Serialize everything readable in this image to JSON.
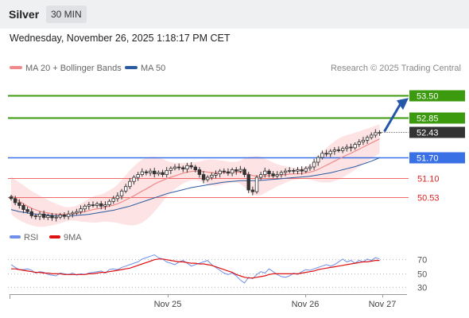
{
  "header": {
    "instrument": "Silver",
    "timeframe": "30 MIN"
  },
  "datetime": "Wednesday, November 26, 2025 1:18:17 PM CET",
  "legend": [
    {
      "label": "MA 20 + Bollinger Bands",
      "color": "#f08a8a"
    },
    {
      "label": "MA 50",
      "color": "#2c5aa0"
    }
  ],
  "credit": "Research © 2025 Trading Central",
  "rsi_legend": [
    {
      "label": "RSI",
      "color": "#6f8fe8"
    },
    {
      "label": "9MA",
      "color": "#dd1111"
    }
  ],
  "colors": {
    "resistance": "#3c9a0e",
    "pivot": "#3a70e6",
    "support": "#f06a6a",
    "last": "#333333",
    "arrow": "#2457a8",
    "up_candle": "#ffffff",
    "down_candle": "#333333",
    "band_fill": "#fde3e3"
  },
  "chart_data": {
    "type": "candlestick",
    "ylim": [
      49.8,
      53.9
    ],
    "x_ticks": [
      "Nov 25",
      "Nov 26",
      "Nov 27"
    ],
    "levels": [
      {
        "value": 53.5,
        "label": "53.50",
        "kind": "resistance"
      },
      {
        "value": 52.85,
        "label": "52.85",
        "kind": "resistance"
      },
      {
        "value": 52.43,
        "label": "52.43",
        "kind": "last"
      },
      {
        "value": 51.7,
        "label": "51.70",
        "kind": "pivot"
      },
      {
        "value": 51.1,
        "label": "51.10",
        "kind": "support"
      },
      {
        "value": 50.53,
        "label": "50.53",
        "kind": "support"
      }
    ],
    "closes": [
      50.5,
      50.38,
      50.3,
      50.18,
      50.12,
      50.0,
      49.98,
      50.05,
      49.95,
      50.0,
      49.94,
      49.96,
      50.02,
      49.98,
      50.05,
      50.08,
      50.12,
      50.2,
      50.28,
      50.32,
      50.3,
      50.35,
      50.28,
      50.32,
      50.42,
      50.5,
      50.58,
      50.72,
      50.85,
      51.0,
      51.12,
      51.2,
      51.28,
      51.25,
      51.3,
      51.22,
      51.26,
      51.2,
      51.32,
      51.38,
      51.42,
      51.4,
      51.36,
      51.46,
      51.42,
      51.34,
      51.2,
      51.05,
      51.12,
      51.18,
      51.22,
      51.3,
      51.28,
      51.24,
      51.34,
      51.3,
      51.35,
      51.2,
      50.75,
      50.7,
      51.12,
      51.2,
      51.3,
      51.22,
      51.16,
      51.2,
      51.26,
      51.3,
      51.32,
      51.3,
      51.34,
      51.3,
      51.38,
      51.42,
      51.56,
      51.7,
      51.82,
      51.8,
      51.88,
      51.92,
      51.9,
      51.96,
      52.0,
      51.98,
      52.08,
      52.15,
      52.2,
      52.28,
      52.35,
      52.42,
      52.43
    ],
    "ma20": [
      50.6,
      50.5,
      50.42,
      50.35,
      50.28,
      50.22,
      50.17,
      50.13,
      50.1,
      50.08,
      50.06,
      50.05,
      50.04,
      50.04,
      50.05,
      50.06,
      50.07,
      50.09,
      50.12,
      50.15,
      50.18,
      50.2,
      50.22,
      50.25,
      50.28,
      50.31,
      50.35,
      50.4,
      50.46,
      50.52,
      50.58,
      50.65,
      50.72,
      50.78,
      50.85,
      50.92,
      50.98,
      51.03,
      51.08,
      51.12,
      51.16,
      51.2,
      51.24,
      51.27,
      51.29,
      51.3,
      51.3,
      51.29,
      51.27,
      51.26,
      51.25,
      51.25,
      51.26,
      51.26,
      51.27,
      51.27,
      51.27,
      51.25,
      51.21,
      51.17,
      51.16,
      51.16,
      51.16,
      51.17,
      51.17,
      51.18,
      51.19,
      51.2,
      51.21,
      51.22,
      51.22,
      51.23,
      51.25,
      51.27,
      51.3,
      51.35,
      51.41,
      51.47,
      51.53,
      51.59,
      51.65,
      51.71,
      51.77,
      51.82,
      51.88,
      51.94,
      52.0,
      52.06,
      52.12,
      52.18,
      52.24
    ],
    "bb_width": [
      0.55,
      0.55,
      0.55,
      0.54,
      0.52,
      0.5,
      0.48,
      0.45,
      0.42,
      0.38,
      0.34,
      0.3,
      0.26,
      0.22,
      0.2,
      0.2,
      0.22,
      0.26,
      0.3,
      0.34,
      0.38,
      0.4,
      0.4,
      0.42,
      0.46,
      0.5,
      0.56,
      0.64,
      0.72,
      0.8,
      0.86,
      0.9,
      0.92,
      0.9,
      0.86,
      0.8,
      0.72,
      0.62,
      0.52,
      0.44,
      0.38,
      0.34,
      0.3,
      0.28,
      0.26,
      0.26,
      0.28,
      0.32,
      0.36,
      0.38,
      0.38,
      0.36,
      0.34,
      0.32,
      0.3,
      0.3,
      0.34,
      0.42,
      0.5,
      0.56,
      0.58,
      0.56,
      0.5,
      0.44,
      0.38,
      0.32,
      0.28,
      0.24,
      0.2,
      0.18,
      0.16,
      0.16,
      0.18,
      0.22,
      0.28,
      0.36,
      0.44,
      0.5,
      0.55,
      0.58,
      0.6,
      0.6,
      0.58,
      0.56,
      0.54,
      0.52,
      0.5,
      0.48,
      0.46,
      0.44,
      0.42
    ],
    "ma50": [
      50.18,
      50.15,
      50.12,
      50.1,
      50.08,
      50.06,
      50.05,
      50.04,
      50.03,
      50.02,
      50.01,
      50.0,
      50.0,
      50.0,
      50.0,
      50.0,
      50.01,
      50.02,
      50.03,
      50.04,
      50.06,
      50.08,
      50.1,
      50.12,
      50.14,
      50.16,
      50.19,
      50.22,
      50.25,
      50.28,
      50.32,
      50.36,
      50.4,
      50.44,
      50.48,
      50.52,
      50.56,
      50.6,
      50.64,
      50.67,
      50.7,
      50.73,
      50.76,
      50.79,
      50.82,
      50.84,
      50.86,
      50.88,
      50.9,
      50.92,
      50.94,
      50.96,
      50.98,
      50.99,
      51.0,
      51.01,
      51.02,
      51.02,
      51.02,
      51.02,
      51.02,
      51.03,
      51.04,
      51.05,
      51.06,
      51.07,
      51.08,
      51.09,
      51.1,
      51.11,
      51.12,
      51.13,
      51.14,
      51.15,
      51.17,
      51.19,
      51.21,
      51.23,
      51.25,
      51.28,
      51.31,
      51.34,
      51.37,
      51.4,
      51.43,
      51.47,
      51.51,
      51.55,
      51.59,
      51.64,
      51.69
    ],
    "rsi": [
      62,
      58,
      55,
      55,
      56,
      54,
      50,
      52,
      51,
      48,
      47,
      46,
      50,
      49,
      48,
      50,
      47,
      49,
      48,
      50,
      51,
      52,
      53,
      50,
      55,
      56,
      55,
      58,
      60,
      62,
      64,
      66,
      70,
      72,
      74,
      76,
      72,
      70,
      66,
      64,
      62,
      66,
      68,
      64,
      60,
      62,
      64,
      66,
      68,
      62,
      58,
      54,
      50,
      48,
      50,
      46,
      40,
      36,
      44,
      42,
      48,
      52,
      50,
      56,
      52,
      48,
      45,
      44,
      46,
      50,
      48,
      52,
      55,
      54,
      56,
      58,
      60,
      62,
      60,
      62,
      66,
      70,
      66,
      68,
      64,
      68,
      66,
      70,
      68,
      72,
      70
    ],
    "rsi_ma": [
      56,
      56,
      55,
      54,
      53,
      52,
      51,
      51,
      50,
      50,
      49,
      49,
      49,
      48,
      48,
      48,
      48,
      48,
      48,
      49,
      49,
      50,
      51,
      51,
      52,
      53,
      54,
      55,
      56,
      57,
      59,
      61,
      63,
      65,
      67,
      69,
      70,
      70,
      69,
      68,
      67,
      66,
      66,
      65,
      64,
      64,
      63,
      63,
      62,
      61,
      59,
      57,
      55,
      53,
      51,
      48,
      46,
      44,
      43,
      43,
      44,
      45,
      46,
      48,
      49,
      49,
      49,
      49,
      49,
      49,
      49,
      50,
      51,
      52,
      53,
      55,
      56,
      57,
      58,
      59,
      60,
      61,
      62,
      63,
      64,
      65,
      66,
      66,
      67,
      68,
      68
    ],
    "rsi_ylim": [
      20,
      80
    ],
    "rsi_ticks": [
      70,
      50,
      30
    ]
  }
}
